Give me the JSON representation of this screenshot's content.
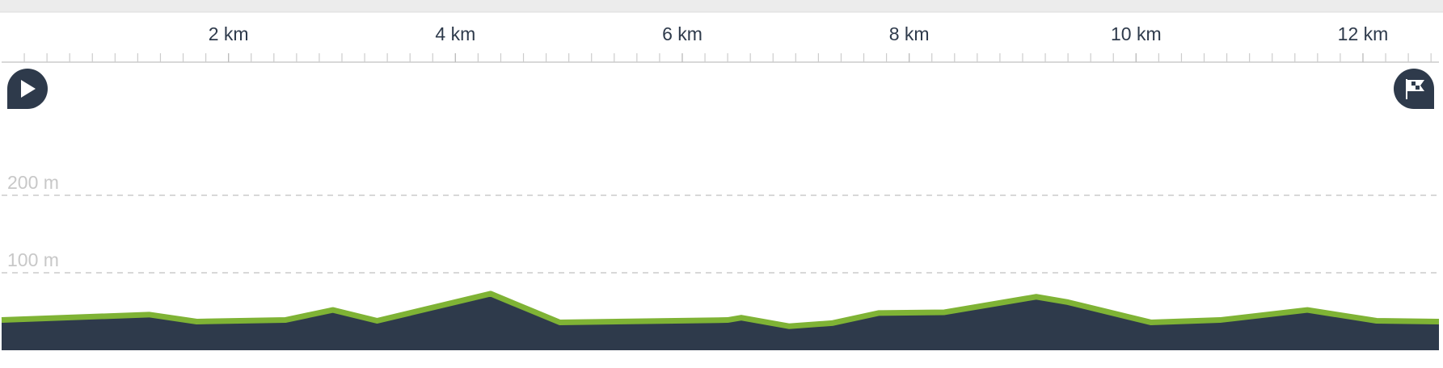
{
  "chart_data": {
    "type": "area",
    "x": [
      0,
      1.3,
      1.72,
      2.5,
      2.92,
      3.31,
      4.31,
      4.92,
      6.4,
      6.52,
      6.94,
      7.32,
      7.73,
      8.31,
      9.12,
      9.4,
      10.13,
      10.74,
      11.51,
      12.12,
      12.67
    ],
    "series": [
      {
        "color": "#7fb335",
        "fill": "#2e3a4b",
        "values": [
          39,
          46,
          37,
          39,
          52,
          38,
          73,
          36,
          39,
          42,
          31,
          35,
          48,
          49,
          69,
          62,
          36,
          39,
          52,
          38,
          37
        ]
      }
    ],
    "xlim": [
      0,
      12.67
    ],
    "xticks": [
      {
        "value": 2,
        "label": "2 km"
      },
      {
        "value": 4,
        "label": "4 km"
      },
      {
        "value": 6,
        "label": "6 km"
      },
      {
        "value": 8,
        "label": "8 km"
      },
      {
        "value": 10,
        "label": "10 km"
      },
      {
        "value": 12,
        "label": "12 km"
      }
    ],
    "xminorticks": [
      0.2,
      0.4,
      0.6,
      0.8,
      1,
      1.2,
      1.4,
      1.6,
      1.8,
      2,
      2.2,
      2.4,
      2.6,
      2.8,
      3,
      3.2,
      3.4,
      3.6,
      3.8,
      4,
      4.2,
      4.4,
      4.6,
      4.8,
      5,
      5.2,
      5.4,
      5.6,
      5.8,
      6,
      6.2,
      6.4,
      6.6,
      6.8,
      7,
      7.2,
      7.4,
      7.6,
      7.8,
      8,
      8.2,
      8.4,
      8.6,
      8.8,
      9,
      9.2,
      9.4,
      9.6,
      9.8,
      10,
      10.2,
      10.4,
      10.6,
      10.8,
      11,
      11.2,
      11.4,
      11.6,
      11.8,
      12,
      12.2,
      12.4,
      12.6
    ],
    "ylim": [
      0,
      250
    ],
    "yticks": [
      {
        "value": 100,
        "label": "100 m"
      },
      {
        "value": 200,
        "label": "200 m"
      }
    ],
    "grid": true
  }
}
